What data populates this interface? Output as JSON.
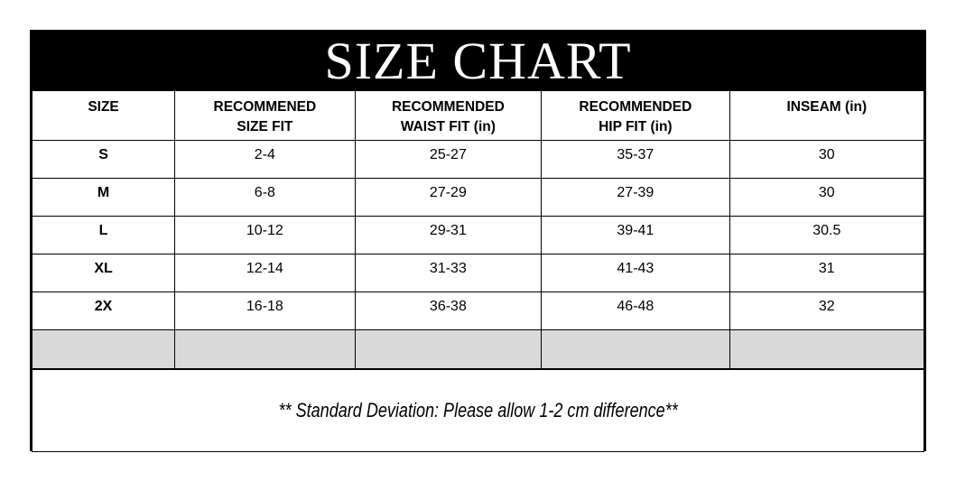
{
  "title": "SIZE CHART",
  "table": {
    "columns": {
      "size": "SIZE",
      "size_fit": "RECOMMENED SIZE FIT",
      "waist_fit": "RECOMMENDED WAIST FIT (in)",
      "hip_fit": "RECOMMENDED HIP FIT (in)",
      "inseam": "INSEAM (in)"
    },
    "rows": [
      {
        "size": "S",
        "size_fit": "2-4",
        "waist_fit": "25-27",
        "hip_fit": "35-37",
        "inseam": "30"
      },
      {
        "size": "M",
        "size_fit": "6-8",
        "waist_fit": "27-29",
        "hip_fit": "27-39",
        "inseam": "30"
      },
      {
        "size": "L",
        "size_fit": "10-12",
        "waist_fit": "29-31",
        "hip_fit": "39-41",
        "inseam": "30.5"
      },
      {
        "size": "XL",
        "size_fit": "12-14",
        "waist_fit": "31-33",
        "hip_fit": "41-43",
        "inseam": "31"
      },
      {
        "size": "2X",
        "size_fit": "16-18",
        "waist_fit": "36-38",
        "hip_fit": "46-48",
        "inseam": "32"
      }
    ]
  },
  "footer_note": "** Standard Deviation: Please allow 1-2 cm difference**",
  "colors": {
    "title_bar_bg": "#000000",
    "title_text": "#ffffff",
    "empty_row_bg": "#d9d9d9",
    "border": "#000000",
    "cell_bg": "#ffffff"
  }
}
